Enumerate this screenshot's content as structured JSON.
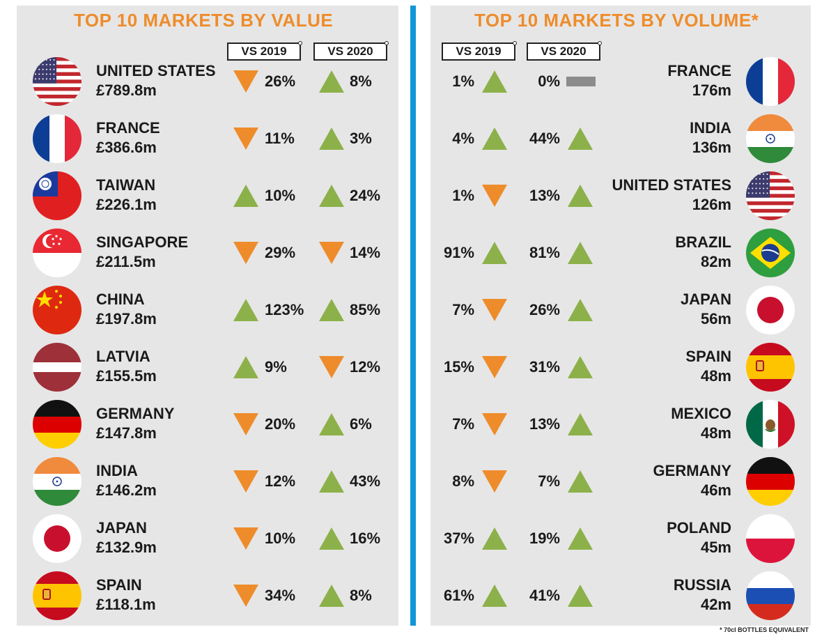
{
  "chart_data": [
    {
      "type": "table",
      "title": "TOP 10 MARKETS BY VALUE",
      "columns": [
        "VS 2019",
        "VS 2020"
      ],
      "rows": [
        {
          "country": "UNITED STATES",
          "flag": "us-flag",
          "value": "£789.8m",
          "vs2019": {
            "pct": "26%",
            "dir": "down"
          },
          "vs2020": {
            "pct": "8%",
            "dir": "up"
          }
        },
        {
          "country": "FRANCE",
          "flag": "france-flag",
          "value": "£386.6m",
          "vs2019": {
            "pct": "11%",
            "dir": "down"
          },
          "vs2020": {
            "pct": "3%",
            "dir": "up"
          }
        },
        {
          "country": "TAIWAN",
          "flag": "taiwan-flag",
          "value": "£226.1m",
          "vs2019": {
            "pct": "10%",
            "dir": "up"
          },
          "vs2020": {
            "pct": "24%",
            "dir": "up"
          }
        },
        {
          "country": "SINGAPORE",
          "flag": "singapore-flag",
          "value": "£211.5m",
          "vs2019": {
            "pct": "29%",
            "dir": "down"
          },
          "vs2020": {
            "pct": "14%",
            "dir": "down"
          }
        },
        {
          "country": "CHINA",
          "flag": "china-flag",
          "value": "£197.8m",
          "vs2019": {
            "pct": "123%",
            "dir": "up"
          },
          "vs2020": {
            "pct": "85%",
            "dir": "up"
          }
        },
        {
          "country": "LATVIA",
          "flag": "latvia-flag",
          "value": "£155.5m",
          "vs2019": {
            "pct": "9%",
            "dir": "up"
          },
          "vs2020": {
            "pct": "12%",
            "dir": "down"
          }
        },
        {
          "country": "GERMANY",
          "flag": "germany-flag",
          "value": "£147.8m",
          "vs2019": {
            "pct": "20%",
            "dir": "down"
          },
          "vs2020": {
            "pct": "6%",
            "dir": "up"
          }
        },
        {
          "country": "INDIA",
          "flag": "india-flag",
          "value": "£146.2m",
          "vs2019": {
            "pct": "12%",
            "dir": "down"
          },
          "vs2020": {
            "pct": "43%",
            "dir": "up"
          }
        },
        {
          "country": "JAPAN",
          "flag": "japan-flag",
          "value": "£132.9m",
          "vs2019": {
            "pct": "10%",
            "dir": "down"
          },
          "vs2020": {
            "pct": "16%",
            "dir": "up"
          }
        },
        {
          "country": "SPAIN",
          "flag": "spain-flag",
          "value": "£118.1m",
          "vs2019": {
            "pct": "34%",
            "dir": "down"
          },
          "vs2020": {
            "pct": "8%",
            "dir": "up"
          }
        }
      ]
    },
    {
      "type": "table",
      "title": "TOP 10 MARKETS BY VOLUME*",
      "columns": [
        "VS 2019",
        "VS 2020"
      ],
      "footnote": "* 70cl BOTTLES EQUIVALENT",
      "rows": [
        {
          "country": "FRANCE",
          "flag": "france-flag",
          "value": "176m",
          "vs2019": {
            "pct": "1%",
            "dir": "up"
          },
          "vs2020": {
            "pct": "0%",
            "dir": "flat"
          }
        },
        {
          "country": "INDIA",
          "flag": "india-flag",
          "value": "136m",
          "vs2019": {
            "pct": "4%",
            "dir": "up"
          },
          "vs2020": {
            "pct": "44%",
            "dir": "up"
          }
        },
        {
          "country": "UNITED STATES",
          "flag": "us-flag",
          "value": "126m",
          "vs2019": {
            "pct": "1%",
            "dir": "down"
          },
          "vs2020": {
            "pct": "13%",
            "dir": "up"
          }
        },
        {
          "country": "BRAZIL",
          "flag": "brazil-flag",
          "value": "82m",
          "vs2019": {
            "pct": "91%",
            "dir": "up"
          },
          "vs2020": {
            "pct": "81%",
            "dir": "up"
          }
        },
        {
          "country": "JAPAN",
          "flag": "japan-flag",
          "value": "56m",
          "vs2019": {
            "pct": "7%",
            "dir": "down"
          },
          "vs2020": {
            "pct": "26%",
            "dir": "up"
          }
        },
        {
          "country": "SPAIN",
          "flag": "spain-flag",
          "value": "48m",
          "vs2019": {
            "pct": "15%",
            "dir": "down"
          },
          "vs2020": {
            "pct": "31%",
            "dir": "up"
          }
        },
        {
          "country": "MEXICO",
          "flag": "mexico-flag",
          "value": "48m",
          "vs2019": {
            "pct": "7%",
            "dir": "down"
          },
          "vs2020": {
            "pct": "13%",
            "dir": "up"
          }
        },
        {
          "country": "GERMANY",
          "flag": "germany-flag",
          "value": "46m",
          "vs2019": {
            "pct": "8%",
            "dir": "down"
          },
          "vs2020": {
            "pct": "7%",
            "dir": "up"
          }
        },
        {
          "country": "POLAND",
          "flag": "poland-flag",
          "value": "45m",
          "vs2019": {
            "pct": "37%",
            "dir": "up"
          },
          "vs2020": {
            "pct": "19%",
            "dir": "up"
          }
        },
        {
          "country": "RUSSIA",
          "flag": "russia-flag",
          "value": "42m",
          "vs2019": {
            "pct": "61%",
            "dir": "up"
          },
          "vs2020": {
            "pct": "41%",
            "dir": "up"
          }
        }
      ]
    }
  ],
  "colors": {
    "up": "#8db14a",
    "down": "#ee8c2b",
    "flat": "#8c8c8c",
    "title": "#ee8c2b",
    "divider": "#1296d6",
    "panel": "#e6e6e6"
  }
}
